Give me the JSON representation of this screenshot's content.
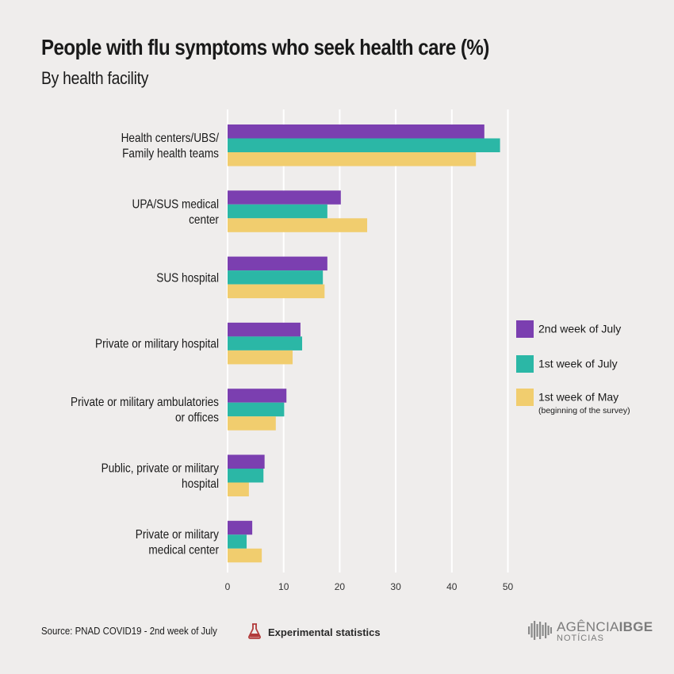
{
  "title": "People with flu symptoms who seek health care (%)",
  "subtitle": "By health facility",
  "footer": {
    "source": "Source: PNAD COVID19 - 2nd week of July",
    "experimental": "Experimental statistics",
    "logo_main_a": "AGÊNCIA",
    "logo_main_b": "IBGE",
    "logo_sub": "NOTÍCIAS"
  },
  "colors": {
    "july2": "#7b3fb0",
    "july1": "#2bb7a6",
    "may1": "#f1cd6e",
    "background": "#efedec",
    "grid": "#ffffff"
  },
  "icons": [
    "flask-icon",
    "ibge-logo-icon"
  ],
  "chart_data": {
    "type": "bar",
    "orientation": "horizontal",
    "categories": [
      [
        "Health centers/UBS/",
        "Family health teams"
      ],
      [
        "UPA/SUS medical",
        "center"
      ],
      [
        "SUS hospital"
      ],
      [
        "Private or military hospital"
      ],
      [
        "Private or military ambulatories",
        "or offices"
      ],
      [
        "Public, private or military",
        "hospital"
      ],
      [
        "Private or military",
        "medical center"
      ]
    ],
    "series": [
      {
        "name": "2nd week of July",
        "color": "#7b3fb0",
        "values": [
          45.8,
          20.2,
          17.8,
          13.0,
          10.5,
          6.6,
          4.4
        ]
      },
      {
        "name": "1st week of July",
        "color": "#2bb7a6",
        "values": [
          48.6,
          17.8,
          17.0,
          13.3,
          10.1,
          6.4,
          3.4
        ]
      },
      {
        "name": "1st week of May",
        "note": "(beginning of the survey)",
        "color": "#f1cd6e",
        "values": [
          44.3,
          24.9,
          17.3,
          11.6,
          8.6,
          3.8,
          6.1
        ]
      }
    ],
    "xticks": [
      "0",
      "10",
      "20",
      "30",
      "40",
      "50"
    ],
    "xlim": [
      0,
      50
    ],
    "grid": true,
    "legend_position": "right"
  }
}
